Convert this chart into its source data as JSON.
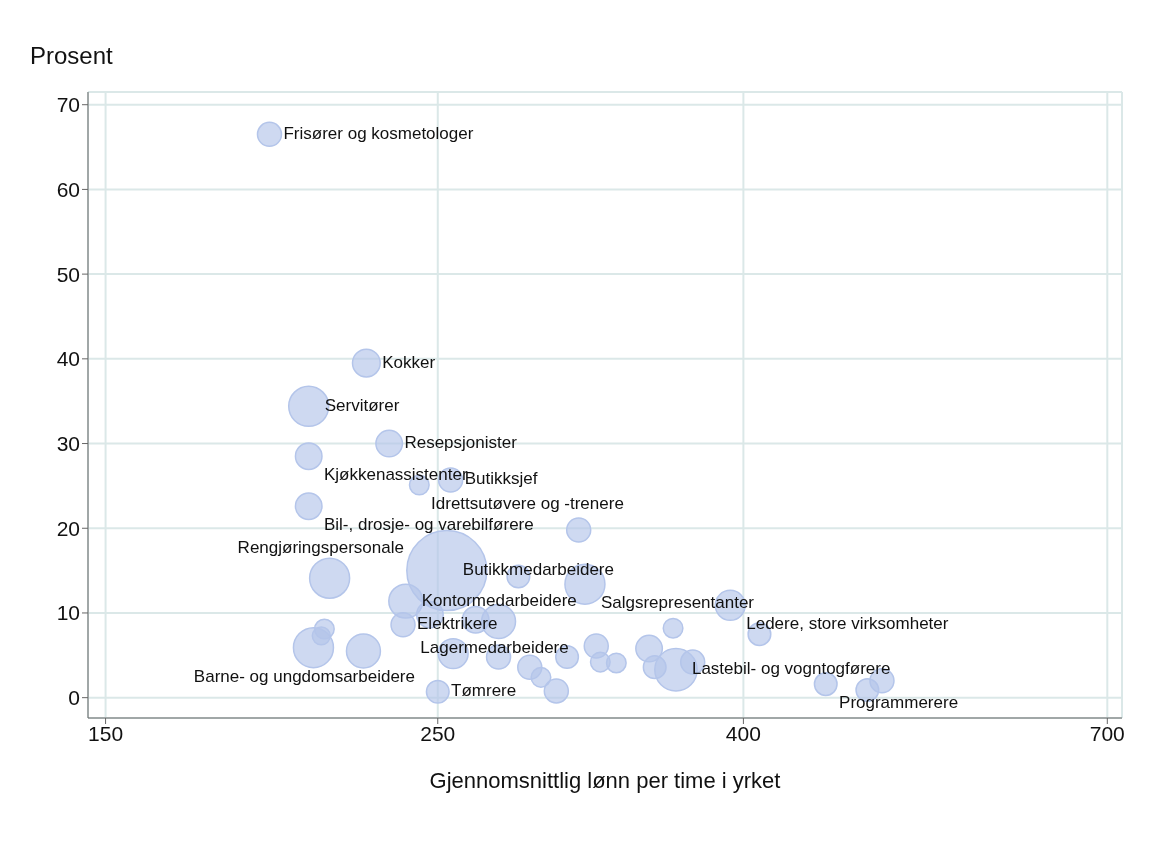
{
  "chart_data": {
    "type": "bubble",
    "xlabel": "Gjennomsnittlig lønn per time i yrket",
    "ylabel": "Prosent",
    "log": "x",
    "xlim": [
      146,
      716
    ],
    "xticks": [
      150,
      250,
      400,
      700
    ],
    "ylim": [
      -2.4,
      71.5
    ],
    "yticks": [
      0,
      10,
      20,
      30,
      40,
      50,
      60,
      70
    ],
    "grid": true,
    "legend": false,
    "series": [
      {
        "color": "#b4c5ea",
        "x": [
          193,
          224,
          205,
          232,
          205,
          243,
          255,
          205,
          253.5,
          283,
          313.5,
          238,
          392,
          237,
          247,
          265,
          274.5,
          359,
          410,
          206.5,
          210,
          209,
          211.7,
          223,
          256,
          274.5,
          288,
          293,
          300,
          250,
          305,
          319,
          321,
          329,
          346,
          349,
          360.6,
          370,
          454,
          484,
          495,
          310.5
        ],
        "values": [
          66.5,
          39.5,
          34.4,
          30.0,
          28.5,
          25.1,
          25.7,
          22.6,
          15.0,
          14.3,
          13.4,
          11.4,
          10.9,
          8.6,
          9.8,
          9.2,
          9.0,
          8.2,
          7.5,
          5.9,
          8.1,
          7.3,
          14.1,
          5.5,
          5.2,
          4.8,
          3.6,
          2.4,
          0.8,
          0.7,
          4.8,
          6.1,
          4.2,
          4.1,
          5.8,
          3.6,
          3.3,
          4.2,
          1.6,
          0.9,
          2.0,
          19.8
        ],
        "sizes": [
          0.09,
          0.12,
          0.25,
          0.11,
          0.11,
          0.06,
          0.09,
          0.11,
          1,
          0.08,
          0.25,
          0.18,
          0.14,
          0.09,
          0.11,
          0.11,
          0.18,
          0.06,
          0.08,
          0.25,
          0.06,
          0.05,
          0.25,
          0.18,
          0.14,
          0.09,
          0.09,
          0.06,
          0.09,
          0.08,
          0.08,
          0.09,
          0.06,
          0.06,
          0.11,
          0.08,
          0.28,
          0.09,
          0.08,
          0.08,
          0.09,
          0.09
        ],
        "value_labels": [
          "Frisører og kosmetologer",
          "Kokker",
          "Servitører",
          "Resepsjonister",
          "Kjøkkenassistenter",
          "Idrettsutøvere og -trenere",
          "Butikksjef",
          "Bil-, drosje- og varebilførere",
          "Butikkmedarbeidere",
          null,
          "Salgsrepresentanter",
          "Kontormedarbeidere",
          "Ledere, store virksomheter",
          "Elektrikere",
          null,
          null,
          "Lagermedarbeidere",
          null,
          null,
          "Barne- og ungdomsarbeidere",
          null,
          null,
          "Rengjøringspersonale",
          null,
          null,
          null,
          null,
          null,
          null,
          "Tømrere",
          null,
          null,
          null,
          null,
          null,
          null,
          "Lastebil- og vogntogførere",
          null,
          "Programmerere",
          null,
          null,
          null
        ]
      }
    ]
  }
}
